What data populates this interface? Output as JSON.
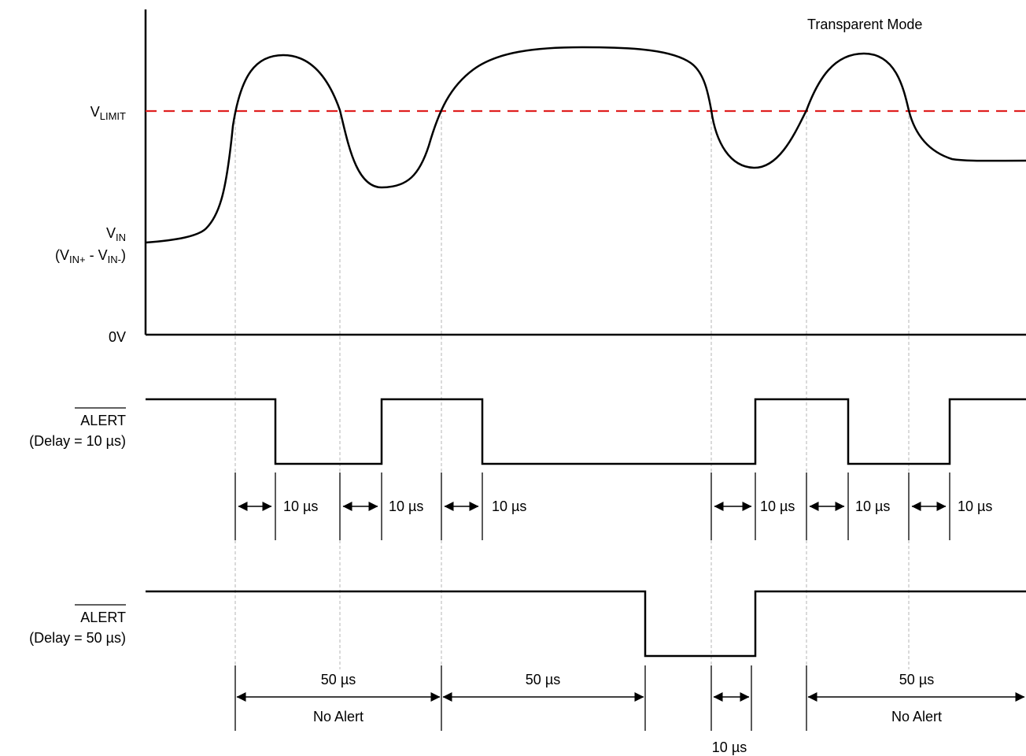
{
  "diagram": {
    "mode_label": "Transparent Mode",
    "labels": {
      "vlimit_main": "V",
      "vlimit_sub": "LIMIT",
      "vin_main": "V",
      "vin_sub": "IN",
      "vin_expr_open": "(V",
      "vin_expr_sub_plus": "IN+",
      "vin_expr_mid": " - V",
      "vin_expr_sub_minus": "IN-",
      "vin_expr_close": ")",
      "zero": "0V",
      "alert1_name": "ALERT",
      "alert1_delay": "(Delay  = 10 µs)",
      "alert2_name": "ALERT",
      "alert2_delay": "(Delay  = 50 µs)"
    },
    "intervals_10us": [
      "10 µs",
      "10 µs",
      "10 µs",
      "10 µs",
      "10 µs",
      "10 µs"
    ],
    "intervals_50us": {
      "span1": "50 µs",
      "span1_note": "No Alert",
      "span2": "50 µs",
      "span3": "10 µs",
      "span4": "50 µs",
      "span4_note": "No Alert"
    },
    "colors": {
      "limit_line": "#e02020",
      "waveform": "#000000",
      "guides": "#b5b5b5"
    }
  }
}
